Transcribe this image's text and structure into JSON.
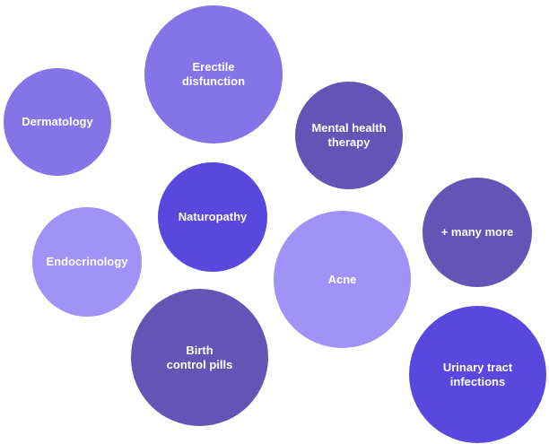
{
  "bubbles": [
    {
      "label": "Erectile\ndisfunction",
      "color": "#8474e8"
    },
    {
      "label": "Dermatology",
      "color": "#8474e8"
    },
    {
      "label": "Mental health\ntherapy",
      "color": "#6354b6"
    },
    {
      "label": "Naturopathy",
      "color": "#5a47de"
    },
    {
      "label": "+ many more",
      "color": "#6354b6"
    },
    {
      "label": "Endocrinology",
      "color": "#a092f7"
    },
    {
      "label": "Acne",
      "color": "#a092f7"
    },
    {
      "label": "Birth\ncontrol pills",
      "color": "#6354b6"
    },
    {
      "label": "Urinary tract\ninfections",
      "color": "#5a47de"
    }
  ]
}
